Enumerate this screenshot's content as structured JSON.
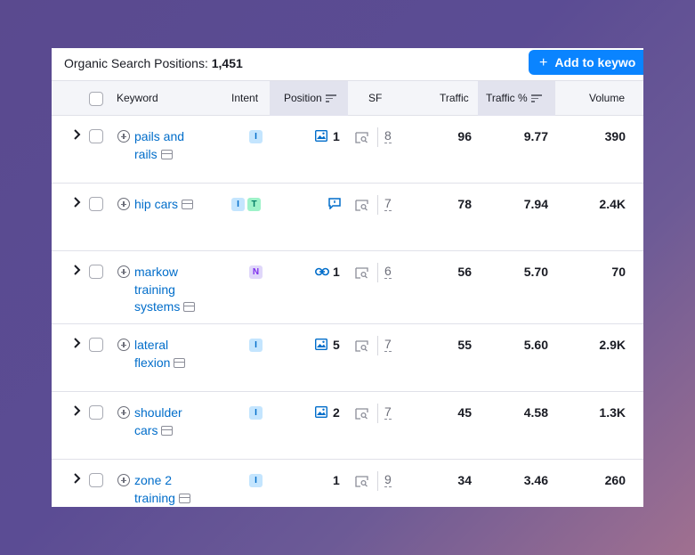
{
  "header": {
    "title_label": "Organic Search Positions:",
    "title_count": "1,451",
    "add_button_label": "Add to keywo"
  },
  "columns": {
    "keyword": "Keyword",
    "intent": "Intent",
    "position": "Position",
    "sf": "SF",
    "traffic": "Traffic",
    "traffic_pct": "Traffic %",
    "volume": "Volume"
  },
  "rows": [
    {
      "keyword_lines": [
        "pails and",
        "rails"
      ],
      "intents": [
        "I"
      ],
      "position_icon": "image-icon",
      "position": "1",
      "sf": "8",
      "traffic": "96",
      "traffic_pct": "9.77",
      "volume": "390"
    },
    {
      "keyword_lines": [
        "hip cars"
      ],
      "intents": [
        "I",
        "T"
      ],
      "position_icon": "review-icon",
      "position": "",
      "sf": "7",
      "traffic": "78",
      "traffic_pct": "7.94",
      "volume": "2.4K"
    },
    {
      "keyword_lines": [
        "markow",
        "training",
        "systems"
      ],
      "intents": [
        "N"
      ],
      "position_icon": "link-icon",
      "position": "1",
      "sf": "6",
      "traffic": "56",
      "traffic_pct": "5.70",
      "volume": "70"
    },
    {
      "keyword_lines": [
        "lateral",
        "flexion"
      ],
      "intents": [
        "I"
      ],
      "position_icon": "image-icon",
      "position": "5",
      "sf": "7",
      "traffic": "55",
      "traffic_pct": "5.60",
      "volume": "2.9K"
    },
    {
      "keyword_lines": [
        "shoulder",
        "cars"
      ],
      "intents": [
        "I"
      ],
      "position_icon": "image-icon",
      "position": "2",
      "sf": "7",
      "traffic": "45",
      "traffic_pct": "4.58",
      "volume": "1.3K"
    },
    {
      "keyword_lines": [
        "zone 2",
        "training"
      ],
      "intents": [
        "I"
      ],
      "position_icon": "",
      "position": "1",
      "sf": "9",
      "traffic": "34",
      "traffic_pct": "3.46",
      "volume": "260"
    }
  ],
  "colors": {
    "accent": "#0a84ff",
    "link": "#006dca"
  }
}
